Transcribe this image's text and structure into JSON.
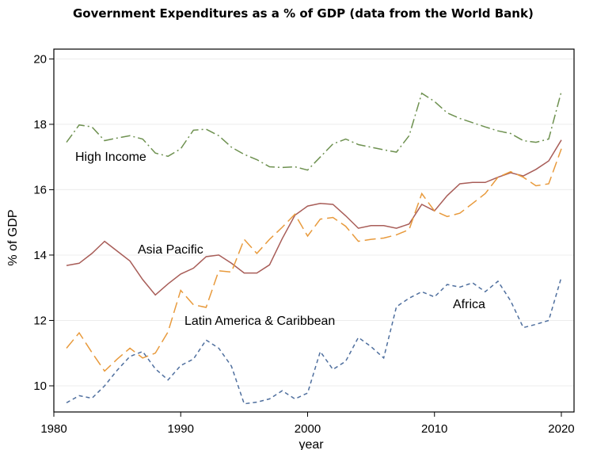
{
  "chart_data": {
    "type": "line",
    "title": "Government Expenditures as a % of GDP (data from the World Bank)",
    "xlabel": "year",
    "ylabel": "% of GDP",
    "xlim": [
      1980,
      2021
    ],
    "ylim": [
      9.2,
      20.3
    ],
    "xticks": [
      1980,
      1990,
      2000,
      2010,
      2020
    ],
    "yticks": [
      10,
      12,
      14,
      16,
      18,
      20
    ],
    "grid": true,
    "legend": "none (inline labels)",
    "series": [
      {
        "name": "High Income",
        "color": "#6e9150",
        "dash": "dash-dot",
        "x": [
          1981,
          1982,
          1983,
          1984,
          1985,
          1986,
          1987,
          1988,
          1989,
          1990,
          1991,
          1992,
          1993,
          1994,
          1995,
          1996,
          1997,
          1998,
          1999,
          2000,
          2001,
          2002,
          2003,
          2004,
          2005,
          2006,
          2007,
          2008,
          2009,
          2010,
          2011,
          2012,
          2013,
          2014,
          2015,
          2016,
          2017,
          2018,
          2019,
          2020
        ],
        "y": [
          17.45,
          17.98,
          17.92,
          17.5,
          17.58,
          17.65,
          17.55,
          17.12,
          17.02,
          17.25,
          17.82,
          17.85,
          17.65,
          17.3,
          17.08,
          16.92,
          16.7,
          16.68,
          16.7,
          16.6,
          17.0,
          17.4,
          17.55,
          17.38,
          17.3,
          17.22,
          17.15,
          17.65,
          18.95,
          18.7,
          18.35,
          18.18,
          18.05,
          17.92,
          17.8,
          17.72,
          17.5,
          17.45,
          17.55,
          19.0
        ]
      },
      {
        "name": "Asia Pacific",
        "color": "#a85d58",
        "dash": "solid",
        "x": [
          1981,
          1982,
          1983,
          1984,
          1985,
          1986,
          1987,
          1988,
          1989,
          1990,
          1991,
          1992,
          1993,
          1994,
          1995,
          1996,
          1997,
          1998,
          1999,
          2000,
          2001,
          2002,
          2003,
          2004,
          2005,
          2006,
          2007,
          2008,
          2009,
          2010,
          2011,
          2012,
          2013,
          2014,
          2015,
          2016,
          2017,
          2018,
          2019,
          2020
        ],
        "y": [
          13.68,
          13.75,
          14.05,
          14.42,
          14.12,
          13.82,
          13.25,
          12.78,
          13.12,
          13.42,
          13.6,
          13.95,
          14.0,
          13.75,
          13.45,
          13.45,
          13.7,
          14.5,
          15.22,
          15.5,
          15.58,
          15.55,
          15.2,
          14.82,
          14.9,
          14.9,
          14.82,
          14.95,
          15.55,
          15.35,
          15.82,
          16.18,
          16.22,
          16.22,
          16.38,
          16.52,
          16.42,
          16.62,
          16.88,
          17.52
        ]
      },
      {
        "name": "Latin America & Caribbean",
        "color": "#e89a3c",
        "dash": "long-dash",
        "x": [
          1981,
          1982,
          1983,
          1984,
          1985,
          1986,
          1987,
          1988,
          1989,
          1990,
          1991,
          1992,
          1993,
          1994,
          1995,
          1996,
          1997,
          1998,
          1999,
          2000,
          2001,
          2002,
          2003,
          2004,
          2005,
          2006,
          2007,
          2008,
          2009,
          2010,
          2011,
          2012,
          2013,
          2014,
          2015,
          2016,
          2017,
          2018,
          2019,
          2020
        ],
        "y": [
          11.15,
          11.62,
          11.02,
          10.45,
          10.82,
          11.15,
          10.85,
          11.0,
          11.65,
          12.92,
          12.48,
          12.4,
          13.52,
          13.48,
          14.48,
          14.05,
          14.48,
          14.85,
          15.25,
          14.58,
          15.1,
          15.15,
          14.88,
          14.42,
          14.48,
          14.52,
          14.62,
          14.78,
          15.88,
          15.35,
          15.18,
          15.28,
          15.58,
          15.88,
          16.38,
          16.55,
          16.38,
          16.12,
          16.18,
          17.25
        ]
      },
      {
        "name": "Africa",
        "color": "#4f6f9e",
        "dash": "short-dash",
        "x": [
          1981,
          1982,
          1983,
          1984,
          1985,
          1986,
          1987,
          1988,
          1989,
          1990,
          1991,
          1992,
          1993,
          1994,
          1995,
          1996,
          1997,
          1998,
          1999,
          2000,
          2001,
          2002,
          2003,
          2004,
          2005,
          2006,
          2007,
          2008,
          2009,
          2010,
          2011,
          2012,
          2013,
          2014,
          2015,
          2016,
          2017,
          2018,
          2019,
          2020
        ],
        "y": [
          9.48,
          9.7,
          9.62,
          10.0,
          10.48,
          10.9,
          11.05,
          10.52,
          10.18,
          10.62,
          10.82,
          11.4,
          11.15,
          10.6,
          9.45,
          9.5,
          9.6,
          9.85,
          9.6,
          9.78,
          11.05,
          10.5,
          10.75,
          11.48,
          11.2,
          10.85,
          12.42,
          12.68,
          12.88,
          12.72,
          13.1,
          13.02,
          13.15,
          12.88,
          13.2,
          12.6,
          11.78,
          11.88,
          12.0,
          13.32
        ]
      }
    ],
    "annotations": [
      {
        "text": "High Income",
        "series": "High Income"
      },
      {
        "text": "Asia Pacific",
        "series": "Asia Pacific"
      },
      {
        "text": "Latin America & Caribbean",
        "series": "Latin America & Caribbean"
      },
      {
        "text": "Africa",
        "series": "Africa"
      }
    ]
  }
}
